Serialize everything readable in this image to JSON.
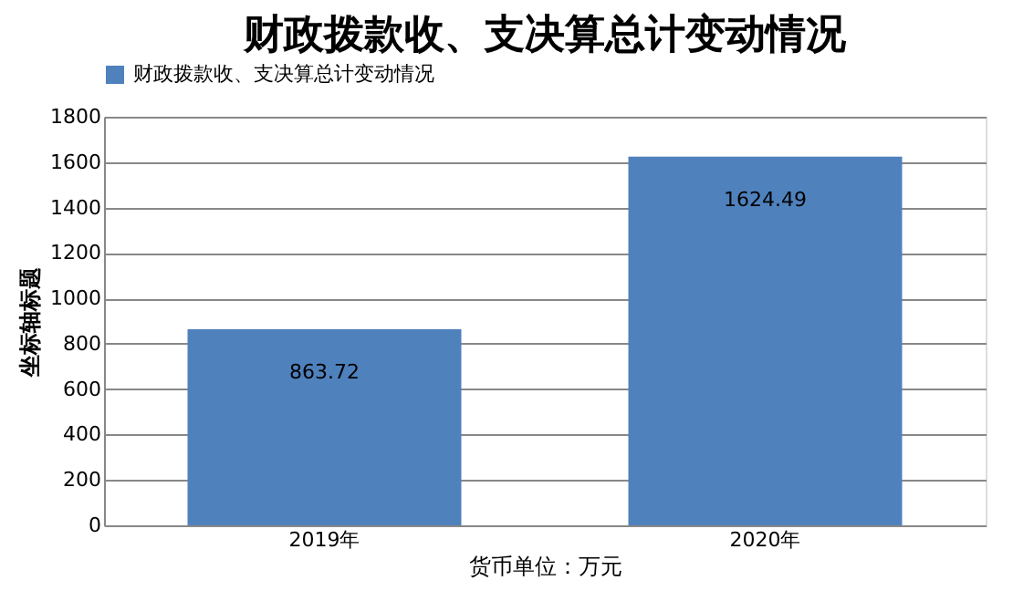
{
  "chart_data": {
    "type": "bar",
    "title": "财政拨款收、支决算总计变动情况",
    "xlabel": "货币单位：万元",
    "ylabel": "坐标轴标题",
    "categories": [
      "2019年",
      "2020年"
    ],
    "series": [
      {
        "name": "财政拨款收、支决算总计变动情况",
        "color": "#4f81bd",
        "values": [
          863.72,
          1624.49
        ]
      }
    ],
    "ylim": [
      0,
      1800
    ],
    "yticks": [
      0,
      200,
      400,
      600,
      800,
      1000,
      1200,
      1400,
      1600,
      1800
    ],
    "grid": "y",
    "legend": "top",
    "data_labels": true
  }
}
